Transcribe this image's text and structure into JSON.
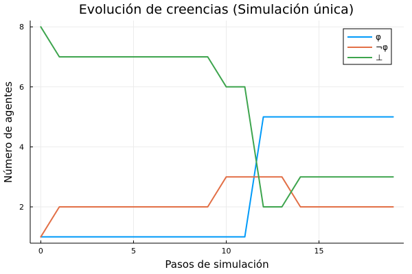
{
  "chart_data": {
    "type": "line",
    "title": "Evolución de creencias (Simulación única)",
    "xlabel": "Pasos de simulación",
    "ylabel": "Número de agentes",
    "x": [
      0,
      1,
      2,
      3,
      4,
      5,
      6,
      7,
      8,
      9,
      10,
      11,
      12,
      13,
      14,
      15,
      16,
      17,
      18,
      19
    ],
    "xlim": [
      -0.57,
      19.57
    ],
    "ylim": [
      0.79,
      8.21
    ],
    "xticks": [
      0,
      5,
      10,
      15
    ],
    "yticks": [
      2,
      4,
      6,
      8
    ],
    "grid": true,
    "legend_position": "top-right",
    "series": [
      {
        "name": "φ",
        "color": "#009af9",
        "values": [
          1,
          1,
          1,
          1,
          1,
          1,
          1,
          1,
          1,
          1,
          1,
          1,
          5,
          5,
          5,
          5,
          5,
          5,
          5,
          5
        ]
      },
      {
        "name": "¬φ",
        "color": "#e26f46",
        "values": [
          1,
          2,
          2,
          2,
          2,
          2,
          2,
          2,
          2,
          2,
          3,
          3,
          3,
          3,
          2,
          2,
          2,
          2,
          2,
          2
        ]
      },
      {
        "name": "⊥",
        "color": "#3da44d",
        "values": [
          8,
          7,
          7,
          7,
          7,
          7,
          7,
          7,
          7,
          7,
          6,
          6,
          2,
          2,
          3,
          3,
          3,
          3,
          3,
          3
        ]
      }
    ]
  }
}
